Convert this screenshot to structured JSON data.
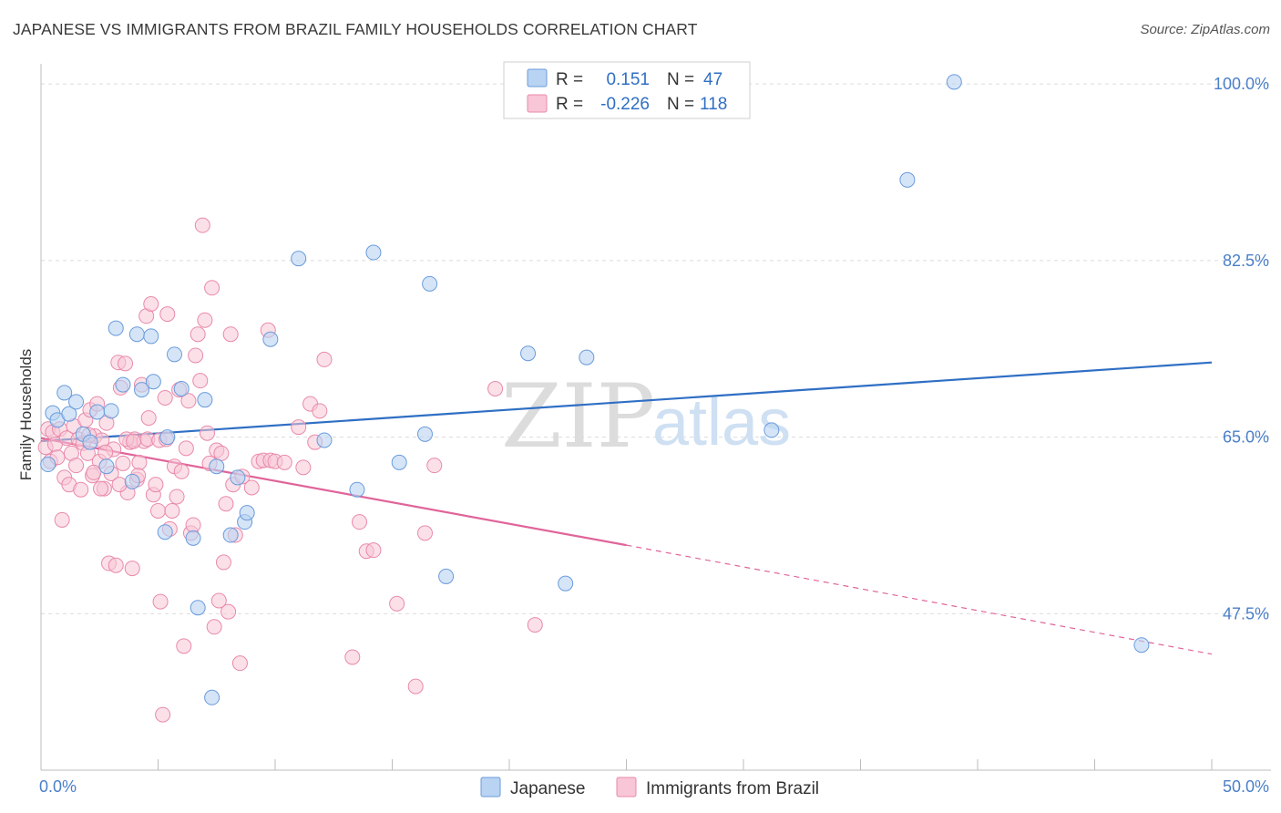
{
  "title": "JAPANESE VS IMMIGRANTS FROM BRAZIL FAMILY HOUSEHOLDS CORRELATION CHART",
  "source": "Source: ZipAtlas.com",
  "watermark": {
    "zip": "ZIP",
    "atlas": "atlas"
  },
  "colors": {
    "blue_fill": "#b9d3f2",
    "blue_stroke": "#6a9bdc",
    "blue_line": "#2f6fc4",
    "pink_fill": "#f8c6d6",
    "pink_stroke": "#e98aab",
    "pink_line": "#e0649a",
    "grid": "#dcdcdc",
    "tick_text": "#4a7fc9"
  },
  "legend": {
    "rows": [
      {
        "r_label": "R =",
        "r_value": "0.151",
        "n_label": "N =",
        "n_value": "47"
      },
      {
        "r_label": "R =",
        "r_value": "-0.226",
        "n_label": "N =",
        "n_value": "118"
      }
    ]
  },
  "bottom_legend": [
    "Japanese",
    "Immigrants from Brazil"
  ],
  "chart_data": {
    "type": "scatter",
    "title": "JAPANESE VS IMMIGRANTS FROM BRAZIL FAMILY HOUSEHOLDS CORRELATION CHART",
    "xlabel": "",
    "ylabel": "Family Households",
    "xlim": [
      0,
      50
    ],
    "ylim": [
      32,
      102
    ],
    "x_tick_labels": [
      "0.0%",
      "50.0%"
    ],
    "y_ticks": [
      47.5,
      65.0,
      82.5,
      100.0
    ],
    "y_tick_labels": [
      "47.5%",
      "65.0%",
      "82.5%",
      "100.0%"
    ],
    "grid": true,
    "series": [
      {
        "name": "Japanese",
        "r": 0.151,
        "n": 47,
        "trend": {
          "x0": 0,
          "y0": 64.6,
          "x1": 50,
          "y1": 72.4
        },
        "points": [
          [
            0.3,
            62.3
          ],
          [
            0.5,
            67.4
          ],
          [
            0.7,
            66.7
          ],
          [
            1.0,
            69.4
          ],
          [
            1.2,
            67.3
          ],
          [
            1.5,
            68.5
          ],
          [
            1.8,
            65.3
          ],
          [
            2.1,
            64.5
          ],
          [
            2.4,
            67.5
          ],
          [
            2.8,
            62.1
          ],
          [
            3.0,
            67.6
          ],
          [
            3.2,
            75.8
          ],
          [
            3.5,
            70.2
          ],
          [
            3.9,
            60.6
          ],
          [
            4.1,
            75.2
          ],
          [
            4.3,
            69.7
          ],
          [
            4.7,
            75.0
          ],
          [
            4.8,
            70.5
          ],
          [
            5.3,
            55.6
          ],
          [
            5.4,
            65.0
          ],
          [
            5.7,
            73.2
          ],
          [
            6.0,
            69.8
          ],
          [
            6.5,
            55.0
          ],
          [
            6.7,
            48.1
          ],
          [
            7.0,
            68.7
          ],
          [
            7.3,
            39.2
          ],
          [
            7.5,
            62.1
          ],
          [
            8.1,
            55.3
          ],
          [
            8.4,
            61.0
          ],
          [
            8.7,
            56.6
          ],
          [
            8.8,
            57.5
          ],
          [
            9.8,
            74.7
          ],
          [
            11.0,
            82.7
          ],
          [
            12.1,
            64.7
          ],
          [
            13.5,
            59.8
          ],
          [
            14.2,
            83.3
          ],
          [
            15.3,
            62.5
          ],
          [
            16.4,
            65.3
          ],
          [
            16.6,
            80.2
          ],
          [
            17.3,
            51.2
          ],
          [
            20.8,
            73.3
          ],
          [
            22.4,
            50.5
          ],
          [
            23.3,
            72.9
          ],
          [
            31.2,
            65.7
          ],
          [
            37.0,
            90.5
          ],
          [
            39.0,
            100.2
          ],
          [
            47.0,
            44.4
          ]
        ]
      },
      {
        "name": "Immigrants from Brazil",
        "r": -0.226,
        "n": 118,
        "trend": {
          "x0": 0,
          "y0": 64.9,
          "x1": 25,
          "y1": 54.3
        },
        "trend_dashed": {
          "x0": 25,
          "y0": 54.3,
          "x1": 50,
          "y1": 43.5
        },
        "points": [
          [
            0.2,
            64.0
          ],
          [
            0.3,
            65.8
          ],
          [
            0.4,
            62.6
          ],
          [
            0.5,
            65.5
          ],
          [
            0.6,
            64.3
          ],
          [
            0.7,
            63.0
          ],
          [
            0.8,
            65.8
          ],
          [
            0.9,
            56.8
          ],
          [
            1.0,
            61.0
          ],
          [
            1.1,
            64.9
          ],
          [
            1.2,
            60.3
          ],
          [
            1.3,
            63.4
          ],
          [
            1.4,
            66.1
          ],
          [
            1.5,
            62.2
          ],
          [
            1.6,
            64.8
          ],
          [
            1.7,
            59.8
          ],
          [
            1.8,
            64.4
          ],
          [
            1.9,
            66.7
          ],
          [
            2.0,
            63.4
          ],
          [
            2.1,
            67.7
          ],
          [
            2.2,
            61.2
          ],
          [
            2.3,
            65.1
          ],
          [
            2.4,
            68.3
          ],
          [
            2.5,
            62.6
          ],
          [
            2.6,
            64.7
          ],
          [
            2.7,
            59.9
          ],
          [
            2.8,
            66.4
          ],
          [
            2.9,
            52.5
          ],
          [
            3.0,
            61.4
          ],
          [
            3.1,
            63.8
          ],
          [
            3.2,
            52.3
          ],
          [
            3.3,
            72.4
          ],
          [
            3.4,
            69.9
          ],
          [
            3.5,
            62.4
          ],
          [
            3.6,
            72.3
          ],
          [
            3.7,
            59.5
          ],
          [
            3.8,
            64.5
          ],
          [
            3.9,
            52.0
          ],
          [
            4.0,
            64.8
          ],
          [
            4.1,
            60.8
          ],
          [
            4.2,
            62.5
          ],
          [
            4.3,
            70.2
          ],
          [
            4.4,
            64.6
          ],
          [
            4.5,
            77.0
          ],
          [
            4.6,
            66.9
          ],
          [
            4.7,
            78.2
          ],
          [
            4.8,
            59.3
          ],
          [
            4.9,
            60.3
          ],
          [
            5.0,
            57.7
          ],
          [
            5.1,
            48.7
          ],
          [
            5.2,
            37.5
          ],
          [
            5.3,
            68.9
          ],
          [
            5.4,
            77.2
          ],
          [
            5.5,
            55.9
          ],
          [
            5.6,
            57.7
          ],
          [
            5.7,
            62.1
          ],
          [
            5.8,
            59.1
          ],
          [
            5.9,
            69.7
          ],
          [
            6.0,
            61.6
          ],
          [
            6.1,
            44.3
          ],
          [
            6.2,
            63.9
          ],
          [
            6.3,
            68.6
          ],
          [
            6.4,
            55.5
          ],
          [
            6.5,
            56.3
          ],
          [
            6.6,
            73.1
          ],
          [
            6.7,
            75.2
          ],
          [
            6.8,
            70.6
          ],
          [
            6.9,
            86.0
          ],
          [
            7.0,
            76.6
          ],
          [
            7.1,
            65.4
          ],
          [
            7.2,
            62.4
          ],
          [
            7.3,
            79.8
          ],
          [
            7.4,
            46.2
          ],
          [
            7.5,
            63.7
          ],
          [
            7.6,
            48.8
          ],
          [
            7.7,
            63.4
          ],
          [
            7.8,
            52.6
          ],
          [
            7.9,
            58.4
          ],
          [
            8.0,
            47.7
          ],
          [
            8.1,
            75.2
          ],
          [
            8.2,
            60.3
          ],
          [
            8.3,
            55.3
          ],
          [
            8.5,
            42.6
          ],
          [
            8.6,
            61.1
          ],
          [
            9.0,
            60.0
          ],
          [
            9.3,
            62.6
          ],
          [
            9.5,
            62.7
          ],
          [
            9.7,
            75.6
          ],
          [
            9.8,
            62.7
          ],
          [
            10.0,
            62.6
          ],
          [
            10.4,
            62.5
          ],
          [
            11.0,
            66.0
          ],
          [
            11.2,
            62.0
          ],
          [
            11.5,
            68.3
          ],
          [
            11.7,
            64.5
          ],
          [
            11.9,
            67.6
          ],
          [
            12.1,
            72.7
          ],
          [
            13.3,
            43.2
          ],
          [
            13.6,
            56.6
          ],
          [
            13.9,
            53.7
          ],
          [
            14.2,
            53.8
          ],
          [
            15.2,
            48.5
          ],
          [
            16.0,
            40.3
          ],
          [
            16.4,
            55.5
          ],
          [
            16.8,
            62.2
          ],
          [
            19.4,
            69.8
          ],
          [
            21.1,
            46.4
          ],
          [
            2.05,
            65.2
          ],
          [
            2.25,
            61.5
          ],
          [
            2.55,
            59.9
          ],
          [
            2.75,
            63.5
          ],
          [
            3.35,
            60.3
          ],
          [
            3.65,
            64.8
          ],
          [
            3.95,
            64.6
          ],
          [
            4.15,
            61.2
          ],
          [
            4.55,
            64.8
          ],
          [
            5.05,
            64.7
          ],
          [
            5.35,
            64.8
          ]
        ]
      }
    ]
  }
}
